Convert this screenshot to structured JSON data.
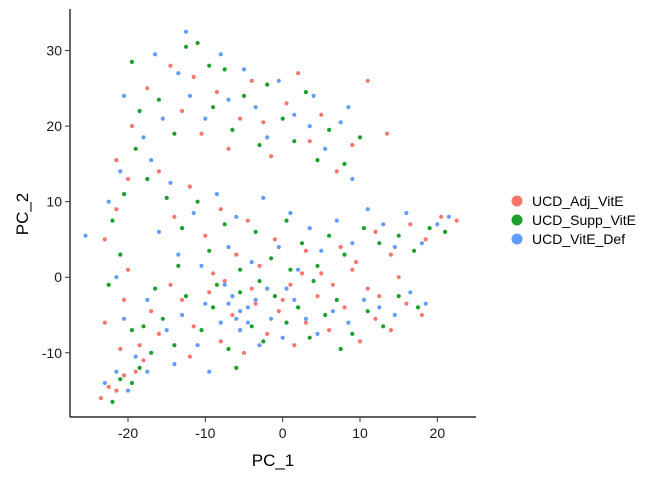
{
  "chart_data": {
    "type": "scatter",
    "title": "",
    "xlabel": "PC_1",
    "ylabel": "PC_2",
    "xlim": [
      -27.5,
      25
    ],
    "ylim": [
      -18.5,
      35.5
    ],
    "xticks": [
      -20,
      -10,
      0,
      10,
      20
    ],
    "yticks": [
      -10,
      0,
      10,
      20,
      30
    ],
    "grid": false,
    "legend_position": "right",
    "series": [
      {
        "name": "UCD_Adj_VitE",
        "color": "#F8766D",
        "points": [
          [
            -23.5,
            -16.0
          ],
          [
            -21.5,
            -15.0
          ],
          [
            -22.5,
            -14.5
          ],
          [
            -20.5,
            -13.0
          ],
          [
            -19.0,
            -12.5
          ],
          [
            -18.0,
            -11.0
          ],
          [
            -21.0,
            -9.5
          ],
          [
            -23.0,
            -6.0
          ],
          [
            -20.5,
            -3.0
          ],
          [
            -20.0,
            1.0
          ],
          [
            -23.0,
            5.0
          ],
          [
            -21.5,
            9.0
          ],
          [
            -20.0,
            13.0
          ],
          [
            -21.5,
            15.5
          ],
          [
            -19.5,
            20.0
          ],
          [
            -17.5,
            25.0
          ],
          [
            -14.5,
            28.0
          ],
          [
            -13.0,
            22.0
          ],
          [
            -11.5,
            26.5
          ],
          [
            -10.5,
            19.0
          ],
          [
            -8.5,
            24.5
          ],
          [
            -7.0,
            17.0
          ],
          [
            -5.5,
            21.0
          ],
          [
            -4.0,
            26.0
          ],
          [
            -2.5,
            20.5
          ],
          [
            -1.5,
            16.0
          ],
          [
            0.5,
            23.0
          ],
          [
            2.0,
            27.0
          ],
          [
            3.5,
            18.0
          ],
          [
            5.0,
            21.5
          ],
          [
            7.0,
            14.0
          ],
          [
            9.0,
            17.5
          ],
          [
            11.0,
            26.0
          ],
          [
            13.5,
            19.0
          ],
          [
            -16.0,
            14.0
          ],
          [
            -14.0,
            8.0
          ],
          [
            -12.0,
            12.0
          ],
          [
            -10.0,
            5.5
          ],
          [
            -8.0,
            9.0
          ],
          [
            -6.0,
            3.0
          ],
          [
            -4.5,
            7.5
          ],
          [
            -3.0,
            1.5
          ],
          [
            -1.0,
            5.0
          ],
          [
            1.0,
            -1.0
          ],
          [
            3.0,
            3.5
          ],
          [
            5.0,
            0.5
          ],
          [
            7.5,
            4.0
          ],
          [
            9.5,
            2.0
          ],
          [
            12.0,
            6.0
          ],
          [
            14.0,
            3.0
          ],
          [
            16.5,
            7.0
          ],
          [
            18.5,
            5.0
          ],
          [
            20.5,
            8.0
          ],
          [
            22.5,
            7.5
          ],
          [
            15.0,
            0.0
          ],
          [
            12.5,
            -2.5
          ],
          [
            -13.0,
            -3.0
          ],
          [
            -11.5,
            -6.5
          ],
          [
            -9.5,
            -2.0
          ],
          [
            -8.0,
            -8.5
          ],
          [
            -6.5,
            -5.0
          ],
          [
            -5.0,
            -10.0
          ],
          [
            -3.5,
            -3.5
          ],
          [
            -2.0,
            -7.5
          ],
          [
            -0.5,
            -4.5
          ],
          [
            1.5,
            -9.0
          ],
          [
            3.0,
            -6.0
          ],
          [
            4.5,
            -2.5
          ],
          [
            6.0,
            -7.0
          ],
          [
            8.0,
            -4.0
          ],
          [
            10.0,
            -8.5
          ],
          [
            12.0,
            -5.5
          ],
          [
            14.0,
            -7.0
          ],
          [
            16.0,
            -3.5
          ],
          [
            18.0,
            -5.0
          ],
          [
            -16.0,
            -7.5
          ],
          [
            -14.5,
            -1.0
          ],
          [
            -17.0,
            -4.5
          ],
          [
            -18.5,
            -9.0
          ],
          [
            -12.0,
            -10.5
          ],
          [
            -7.5,
            -0.5
          ],
          [
            -4.0,
            -1.5
          ],
          [
            0.0,
            -3.0
          ],
          [
            2.5,
            0.5
          ],
          [
            6.5,
            -1.0
          ],
          [
            9.0,
            1.0
          ],
          [
            11.0,
            -1.5
          ],
          [
            -9.0,
            0.5
          ]
        ]
      },
      {
        "name": "UCD_Supp_VitE",
        "color": "#1CA02C",
        "points": [
          [
            -22.0,
            -16.5
          ],
          [
            -21.0,
            -13.5
          ],
          [
            -19.5,
            -14.0
          ],
          [
            -18.5,
            -12.0
          ],
          [
            -17.0,
            -10.0
          ],
          [
            -19.5,
            -7.0
          ],
          [
            -22.5,
            -1.0
          ],
          [
            -21.0,
            3.0
          ],
          [
            -22.0,
            7.5
          ],
          [
            -20.5,
            11.0
          ],
          [
            -19.0,
            17.0
          ],
          [
            -18.5,
            22.0
          ],
          [
            -19.5,
            28.5
          ],
          [
            -16.0,
            23.5
          ],
          [
            -14.0,
            19.0
          ],
          [
            -12.5,
            30.5
          ],
          [
            -11.0,
            31.0
          ],
          [
            -9.5,
            28.0
          ],
          [
            -9.0,
            22.5
          ],
          [
            -7.5,
            27.5
          ],
          [
            -6.5,
            19.5
          ],
          [
            -5.0,
            24.0
          ],
          [
            -3.0,
            17.5
          ],
          [
            -2.0,
            25.5
          ],
          [
            0.0,
            21.0
          ],
          [
            1.5,
            18.0
          ],
          [
            3.0,
            24.5
          ],
          [
            4.5,
            15.5
          ],
          [
            6.0,
            19.5
          ],
          [
            8.0,
            15.0
          ],
          [
            10.0,
            18.5
          ],
          [
            -17.5,
            13.0
          ],
          [
            -15.0,
            10.5
          ],
          [
            -13.0,
            6.5
          ],
          [
            -11.0,
            10.0
          ],
          [
            -9.5,
            3.5
          ],
          [
            -7.5,
            7.0
          ],
          [
            -5.5,
            1.0
          ],
          [
            -3.5,
            6.0
          ],
          [
            -1.5,
            2.5
          ],
          [
            0.5,
            7.5
          ],
          [
            2.5,
            4.5
          ],
          [
            4.0,
            -0.5
          ],
          [
            6.0,
            5.5
          ],
          [
            8.0,
            3.0
          ],
          [
            10.5,
            6.5
          ],
          [
            12.5,
            4.5
          ],
          [
            15.0,
            5.5
          ],
          [
            17.0,
            3.5
          ],
          [
            19.0,
            6.5
          ],
          [
            21.0,
            6.0
          ],
          [
            -15.5,
            -5.5
          ],
          [
            -14.0,
            -9.0
          ],
          [
            -12.5,
            -2.5
          ],
          [
            -10.5,
            -7.0
          ],
          [
            -9.0,
            -4.0
          ],
          [
            -7.0,
            -9.5
          ],
          [
            -5.5,
            -2.0
          ],
          [
            -4.0,
            -6.5
          ],
          [
            -2.5,
            -8.5
          ],
          [
            -1.0,
            -2.5
          ],
          [
            0.5,
            -6.0
          ],
          [
            2.0,
            -4.0
          ],
          [
            3.5,
            -8.0
          ],
          [
            5.5,
            -5.0
          ],
          [
            7.0,
            -3.0
          ],
          [
            9.0,
            -7.5
          ],
          [
            11.0,
            -4.5
          ],
          [
            13.0,
            -6.5
          ],
          [
            15.0,
            -2.5
          ],
          [
            17.5,
            -4.0
          ],
          [
            -16.5,
            -1.5
          ],
          [
            -18.0,
            -6.5
          ],
          [
            -13.5,
            1.5
          ],
          [
            -8.5,
            -1.0
          ],
          [
            -6.0,
            -12.0
          ],
          [
            -3.0,
            -0.5
          ],
          [
            1.0,
            1.0
          ],
          [
            4.5,
            1.5
          ],
          [
            7.5,
            -9.5
          ]
        ]
      },
      {
        "name": "UCD_VitE_Def",
        "color": "#619CFF",
        "points": [
          [
            -25.5,
            5.5
          ],
          [
            -23.0,
            -14.0
          ],
          [
            -21.5,
            -12.5
          ],
          [
            -20.0,
            -15.0
          ],
          [
            -19.0,
            -10.5
          ],
          [
            -17.5,
            -12.5
          ],
          [
            -20.5,
            -5.5
          ],
          [
            -21.5,
            0.0
          ],
          [
            -22.5,
            10.0
          ],
          [
            -21.0,
            14.0
          ],
          [
            -20.5,
            24.0
          ],
          [
            -18.0,
            18.5
          ],
          [
            -16.5,
            29.5
          ],
          [
            -15.5,
            21.0
          ],
          [
            -13.5,
            27.0
          ],
          [
            -12.5,
            32.5
          ],
          [
            -12.0,
            24.0
          ],
          [
            -10.0,
            21.0
          ],
          [
            -8.0,
            29.5
          ],
          [
            -7.0,
            23.5
          ],
          [
            -5.0,
            27.5
          ],
          [
            -3.5,
            22.5
          ],
          [
            -2.0,
            18.5
          ],
          [
            -0.5,
            26.0
          ],
          [
            1.5,
            21.5
          ],
          [
            3.5,
            20.0
          ],
          [
            4.0,
            24.0
          ],
          [
            5.5,
            17.0
          ],
          [
            7.5,
            20.5
          ],
          [
            8.5,
            22.5
          ],
          [
            9.0,
            13.0
          ],
          [
            -17.0,
            15.5
          ],
          [
            -16.0,
            6.0
          ],
          [
            -14.5,
            12.5
          ],
          [
            -13.5,
            3.0
          ],
          [
            -11.5,
            8.5
          ],
          [
            -10.5,
            1.5
          ],
          [
            -8.5,
            11.0
          ],
          [
            -7.0,
            4.0
          ],
          [
            -6.0,
            8.0
          ],
          [
            -4.0,
            2.0
          ],
          [
            -2.5,
            10.5
          ],
          [
            -0.5,
            4.0
          ],
          [
            1.0,
            8.5
          ],
          [
            2.0,
            1.0
          ],
          [
            3.5,
            6.5
          ],
          [
            5.0,
            3.5
          ],
          [
            7.0,
            7.5
          ],
          [
            9.0,
            4.5
          ],
          [
            11.0,
            9.0
          ],
          [
            13.0,
            7.0
          ],
          [
            14.5,
            4.0
          ],
          [
            16.0,
            8.5
          ],
          [
            18.0,
            4.5
          ],
          [
            20.0,
            7.0
          ],
          [
            21.5,
            8.0
          ],
          [
            -17.5,
            -3.0
          ],
          [
            -15.0,
            -7.0
          ],
          [
            -13.0,
            -5.0
          ],
          [
            -11.0,
            -9.0
          ],
          [
            -10.0,
            -3.5
          ],
          [
            -8.0,
            -6.0
          ],
          [
            -6.5,
            -2.5
          ],
          [
            -5.5,
            -7.0
          ],
          [
            -4.5,
            -4.0
          ],
          [
            -3.0,
            -9.0
          ],
          [
            -1.5,
            -5.5
          ],
          [
            0.0,
            -8.0
          ],
          [
            1.5,
            -3.0
          ],
          [
            3.0,
            -5.5
          ],
          [
            4.5,
            -7.5
          ],
          [
            6.5,
            -4.5
          ],
          [
            8.5,
            -6.0
          ],
          [
            10.5,
            -3.0
          ],
          [
            12.5,
            -4.0
          ],
          [
            14.5,
            -5.0
          ],
          [
            16.5,
            -2.0
          ],
          [
            18.5,
            -3.5
          ],
          [
            -14.0,
            -11.5
          ],
          [
            -9.5,
            -12.5
          ],
          [
            -7.5,
            -1.0
          ],
          [
            -5.5,
            -4.5
          ],
          [
            -3.5,
            -3.0
          ],
          [
            -6.0,
            -5.5
          ],
          [
            -4.5,
            -6.0
          ],
          [
            -7.0,
            -3.5
          ],
          [
            -2.0,
            -1.5
          ],
          [
            0.5,
            -1.5
          ]
        ]
      }
    ]
  }
}
